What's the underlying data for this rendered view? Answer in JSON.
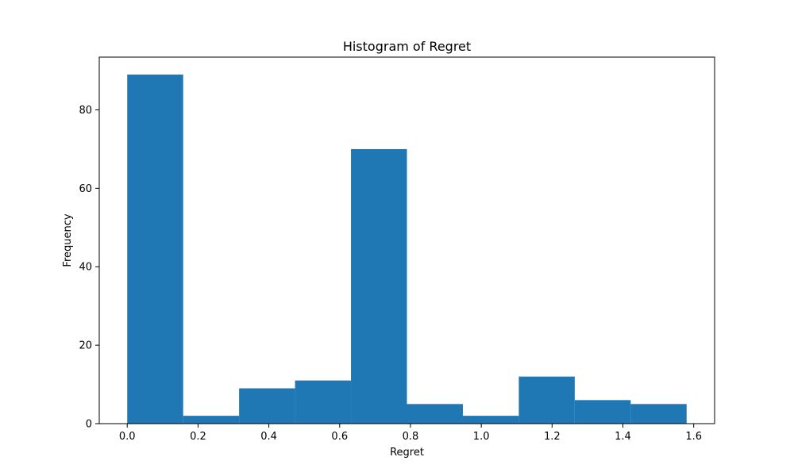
{
  "chart_data": {
    "type": "bar",
    "title": "Histogram of Regret",
    "xlabel": "Regret",
    "ylabel": "Frequency",
    "bins": [
      {
        "x0": 0.0,
        "x1": 0.158,
        "count": 89
      },
      {
        "x0": 0.158,
        "x1": 0.316,
        "count": 2
      },
      {
        "x0": 0.316,
        "x1": 0.474,
        "count": 9
      },
      {
        "x0": 0.474,
        "x1": 0.632,
        "count": 11
      },
      {
        "x0": 0.632,
        "x1": 0.79,
        "count": 70
      },
      {
        "x0": 0.79,
        "x1": 0.948,
        "count": 5
      },
      {
        "x0": 0.948,
        "x1": 1.106,
        "count": 2
      },
      {
        "x0": 1.106,
        "x1": 1.264,
        "count": 12
      },
      {
        "x0": 1.264,
        "x1": 1.422,
        "count": 6
      },
      {
        "x0": 1.422,
        "x1": 1.58,
        "count": 5
      }
    ],
    "xlim": [
      -0.079,
      1.659
    ],
    "ylim": [
      0,
      93.45
    ],
    "xticks": [
      0.0,
      0.2,
      0.4,
      0.6,
      0.8,
      1.0,
      1.2,
      1.4,
      1.6
    ],
    "xtick_labels": [
      "0.0",
      "0.2",
      "0.4",
      "0.6",
      "0.8",
      "1.0",
      "1.2",
      "1.4",
      "1.6"
    ],
    "yticks": [
      0,
      20,
      40,
      60,
      80
    ],
    "ytick_labels": [
      "0",
      "20",
      "40",
      "60",
      "80"
    ],
    "bar_color": "#1f77b4",
    "grid": false,
    "legend": "none"
  }
}
